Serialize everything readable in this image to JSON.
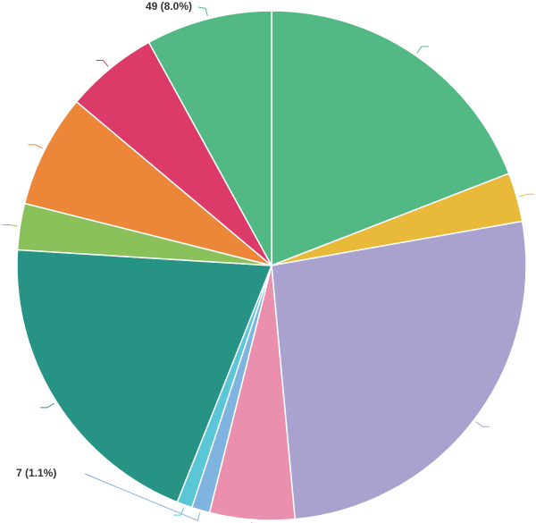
{
  "chart_data": {
    "type": "pie",
    "values": [
      117,
      19,
      161,
      33,
      7,
      6,
      122,
      18,
      44,
      36,
      49
    ],
    "value_labels": [
      null,
      null,
      null,
      null,
      "7 (1.1%)",
      null,
      null,
      null,
      null,
      null,
      "49 (8.0%)"
    ],
    "colors": [
      "#52b985",
      "#e9b93a",
      "#a9a2cf",
      "#ea90ae",
      "#7fb3e0",
      "#5bc7d6",
      "#269385",
      "#8bc15a",
      "#ec8639",
      "#dc3b6a",
      "#52b985"
    ]
  }
}
